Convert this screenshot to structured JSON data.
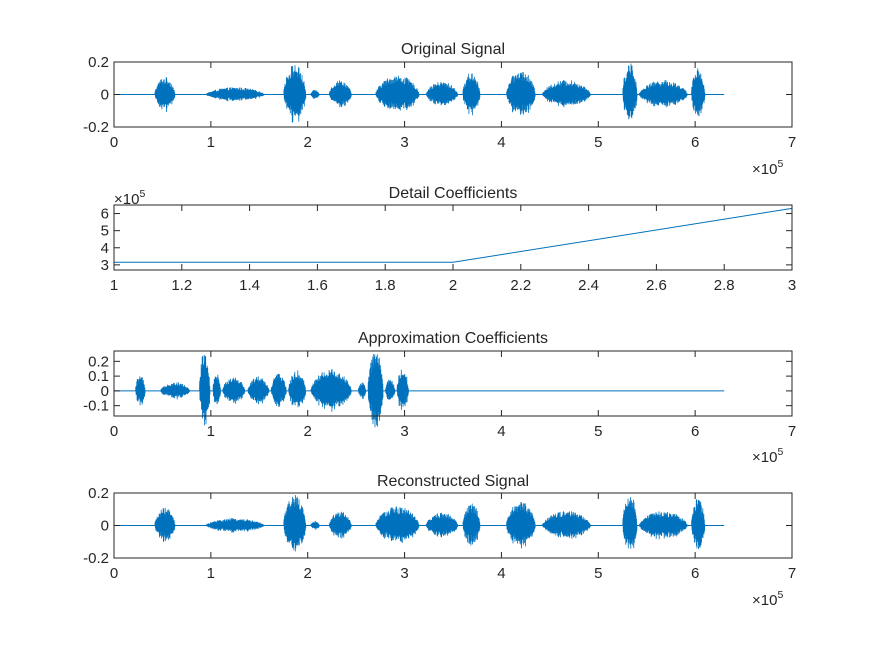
{
  "chart_data": [
    {
      "type": "line",
      "title": "Original Signal",
      "xlim": [
        0,
        700000
      ],
      "ylim": [
        -0.2,
        0.2
      ],
      "xticks": [
        0,
        1,
        2,
        3,
        4,
        5,
        6,
        7
      ],
      "yticks": [
        0.2,
        0,
        -0.2
      ],
      "xtick_labels": [
        "0",
        "1",
        "2",
        "3",
        "4",
        "5",
        "6",
        "7"
      ],
      "ytick_labels": [
        "0.2",
        "0",
        "-0.2"
      ],
      "x_multiplier_base": "×10",
      "x_multiplier_exp": "5",
      "signal_length": 630000,
      "color": "#0072BD",
      "grid": false,
      "bursts": [
        {
          "start": 0.42,
          "end": 0.63,
          "amp": 0.11
        },
        {
          "start": 0.95,
          "end": 1.55,
          "amp": 0.045
        },
        {
          "start": 1.75,
          "end": 1.98,
          "amp": 0.19
        },
        {
          "start": 2.03,
          "end": 2.12,
          "amp": 0.03
        },
        {
          "start": 2.22,
          "end": 2.45,
          "amp": 0.09
        },
        {
          "start": 2.7,
          "end": 3.15,
          "amp": 0.12
        },
        {
          "start": 3.22,
          "end": 3.55,
          "amp": 0.08
        },
        {
          "start": 3.6,
          "end": 3.78,
          "amp": 0.14
        },
        {
          "start": 4.05,
          "end": 4.35,
          "amp": 0.15
        },
        {
          "start": 4.42,
          "end": 4.92,
          "amp": 0.09
        },
        {
          "start": 5.25,
          "end": 5.4,
          "amp": 0.2
        },
        {
          "start": 5.42,
          "end": 5.92,
          "amp": 0.09
        },
        {
          "start": 5.96,
          "end": 6.1,
          "amp": 0.17
        }
      ]
    },
    {
      "type": "line",
      "title": "Detail Coefficients",
      "x": [
        1,
        2,
        3
      ],
      "y": [
        315000,
        315000,
        630000
      ],
      "xlim": [
        1,
        3
      ],
      "ylim": [
        270000,
        650000
      ],
      "xticks": [
        1,
        1.2,
        1.4,
        1.6,
        1.8,
        2,
        2.2,
        2.4,
        2.6,
        2.8,
        3
      ],
      "yticks": [
        6,
        5,
        4,
        3
      ],
      "xtick_labels": [
        "1",
        "1.2",
        "1.4",
        "1.6",
        "1.8",
        "2",
        "2.2",
        "2.4",
        "2.6",
        "2.8",
        "3"
      ],
      "ytick_labels": [
        "6",
        "5",
        "4",
        "3"
      ],
      "y_multiplier_base": "×10",
      "y_multiplier_exp": "5",
      "color": "#0072BD",
      "grid": false
    },
    {
      "type": "line",
      "title": "Approximation Coefficients",
      "xlim": [
        0,
        700000
      ],
      "ylim": [
        -0.17,
        0.27
      ],
      "xticks": [
        0,
        1,
        2,
        3,
        4,
        5,
        6,
        7
      ],
      "yticks": [
        0.2,
        0.1,
        0,
        -0.1
      ],
      "xtick_labels": [
        "0",
        "1",
        "2",
        "3",
        "4",
        "5",
        "6",
        "7"
      ],
      "ytick_labels": [
        "0.2",
        "0.1",
        "0",
        "-0.1"
      ],
      "x_multiplier_base": "×10",
      "x_multiplier_exp": "5",
      "signal_length": 630000,
      "color": "#0072BD",
      "grid": false,
      "bursts": [
        {
          "start": 0.22,
          "end": 0.32,
          "amp": 0.11
        },
        {
          "start": 0.48,
          "end": 0.78,
          "amp": 0.06
        },
        {
          "start": 0.88,
          "end": 0.99,
          "amp": 0.27
        },
        {
          "start": 1.02,
          "end": 1.1,
          "amp": 0.12
        },
        {
          "start": 1.12,
          "end": 1.35,
          "amp": 0.1
        },
        {
          "start": 1.38,
          "end": 1.6,
          "amp": 0.1
        },
        {
          "start": 1.62,
          "end": 1.78,
          "amp": 0.12
        },
        {
          "start": 1.8,
          "end": 1.98,
          "amp": 0.14
        },
        {
          "start": 2.03,
          "end": 2.45,
          "amp": 0.15
        },
        {
          "start": 2.52,
          "end": 2.6,
          "amp": 0.06
        },
        {
          "start": 2.62,
          "end": 2.78,
          "amp": 0.28
        },
        {
          "start": 2.8,
          "end": 2.9,
          "amp": 0.08
        },
        {
          "start": 2.92,
          "end": 3.04,
          "amp": 0.16
        }
      ]
    },
    {
      "type": "line",
      "title": "Reconstructed Signal",
      "xlim": [
        0,
        700000
      ],
      "ylim": [
        -0.2,
        0.2
      ],
      "xticks": [
        0,
        1,
        2,
        3,
        4,
        5,
        6,
        7
      ],
      "yticks": [
        0.2,
        0,
        -0.2
      ],
      "xtick_labels": [
        "0",
        "1",
        "2",
        "3",
        "4",
        "5",
        "6",
        "7"
      ],
      "ytick_labels": [
        "0.2",
        "0",
        "-0.2"
      ],
      "x_multiplier_base": "×10",
      "x_multiplier_exp": "5",
      "signal_length": 630000,
      "color": "#0072BD",
      "grid": false,
      "bursts": [
        {
          "start": 0.42,
          "end": 0.63,
          "amp": 0.11
        },
        {
          "start": 0.95,
          "end": 1.55,
          "amp": 0.045
        },
        {
          "start": 1.75,
          "end": 1.98,
          "amp": 0.19
        },
        {
          "start": 2.03,
          "end": 2.12,
          "amp": 0.03
        },
        {
          "start": 2.22,
          "end": 2.45,
          "amp": 0.09
        },
        {
          "start": 2.7,
          "end": 3.15,
          "amp": 0.12
        },
        {
          "start": 3.22,
          "end": 3.55,
          "amp": 0.08
        },
        {
          "start": 3.6,
          "end": 3.78,
          "amp": 0.14
        },
        {
          "start": 4.05,
          "end": 4.35,
          "amp": 0.15
        },
        {
          "start": 4.42,
          "end": 4.92,
          "amp": 0.09
        },
        {
          "start": 5.25,
          "end": 5.4,
          "amp": 0.2
        },
        {
          "start": 5.42,
          "end": 5.92,
          "amp": 0.09
        },
        {
          "start": 5.96,
          "end": 6.1,
          "amp": 0.17
        }
      ]
    }
  ]
}
